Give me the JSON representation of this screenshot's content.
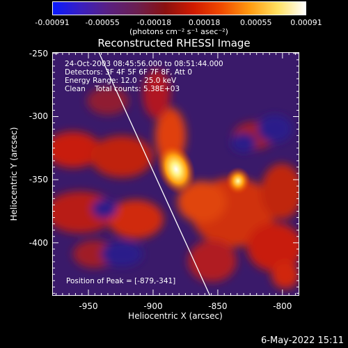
{
  "colorbar": {
    "tick_labels": [
      "-0.00091",
      "-0.00055",
      "-0.00018",
      "0.00018",
      "0.00055",
      "0.00091"
    ],
    "units_label": "(photons cm⁻² s⁻¹ asec⁻²)",
    "range": [
      -0.00091,
      0.00091
    ],
    "colors": [
      "#0a1aff",
      "#3a1fc0",
      "#5a2080",
      "#6b1f50",
      "#8a1010",
      "#d01a00",
      "#f04a00",
      "#ff9a10",
      "#ffe060",
      "#ffffff"
    ]
  },
  "title": "Reconstructed RHESSI Image",
  "info": {
    "time_range": "24-Oct-2003 08:45:56.000 to 08:51:44.000",
    "detectors": "Detectors: 3F 4F 5F 6F 7F 8F, Att 0",
    "energy_range": "Energy Range: 12.0 - 25.0 keV",
    "clean": "Clean    Total counts: 5.38E+03",
    "peak": "Position of Peak = [-879,-341]"
  },
  "axes": {
    "x_label": "Heliocentric X (arcsec)",
    "y_label": "Heliocentric Y (arcsec)",
    "x_tick_labels": [
      "-950",
      "-900",
      "-850",
      "-800"
    ],
    "y_tick_labels": [
      "-250",
      "-300",
      "-350",
      "-400"
    ],
    "x_ticks": [
      -950,
      -900,
      -850,
      -800
    ],
    "y_ticks": [
      -250,
      -300,
      -350,
      -400
    ],
    "x_range": [
      -978,
      -787
    ],
    "y_range": [
      -442,
      -249
    ]
  },
  "image": {
    "peak_position": [
      -879,
      -341
    ],
    "limb_line": [
      [
        -942,
        -249
      ],
      [
        -856,
        -442
      ]
    ]
  },
  "timestamp": "6-May-2022 15:11"
}
